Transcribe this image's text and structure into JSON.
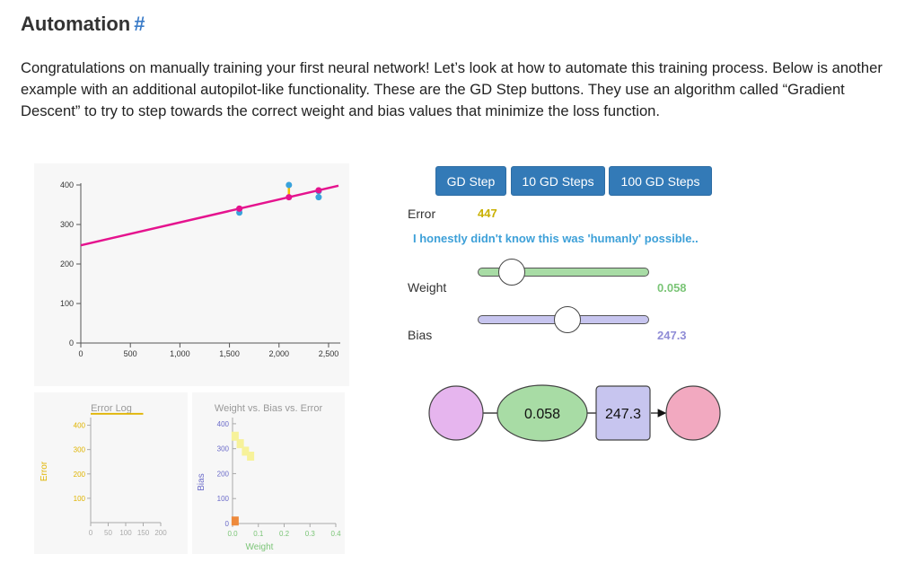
{
  "heading": {
    "title": "Automation",
    "anchor": "#"
  },
  "intro": "Congratulations on manually training your first neural network! Let’s look at how to automate this training process. Below is another example with an additional autopilot-like functionality. These are the GD Step buttons. They use an algorithm called “Gradient Descent” to try to step towards the correct weight and bias values that minimize the loss function.",
  "controls": {
    "buttons": [
      "GD Step",
      "10 GD Steps",
      "100 GD Steps"
    ],
    "error_label": "Error",
    "error_value": "447",
    "message": "I honestly didn't know this was 'humanly' possible..",
    "weight_label": "Weight",
    "weight_value": "0.058",
    "weight_slider_fraction": 0.2,
    "bias_label": "Bias",
    "bias_value": "247.3",
    "bias_slider_fraction": 0.53
  },
  "network": {
    "weight": "0.058",
    "bias": "247.3"
  },
  "colors": {
    "weight": "#a8dca5",
    "bias": "#c7c5ef",
    "input": "#e6b5ee",
    "output": "#f2a9c0",
    "error": "#c9b000",
    "line": "#e5138e",
    "points": "#3aa3dc",
    "button": "#337ab7",
    "message": "#3da0d8"
  },
  "chart_data": [
    {
      "type": "scatter",
      "x_ticks": [
        "0",
        "500",
        "1,000",
        "1,500",
        "2,000",
        "2,500"
      ],
      "y_ticks": [
        "0",
        "100",
        "200",
        "300",
        "400"
      ],
      "xlim": [
        0,
        2600
      ],
      "ylim": [
        0,
        400
      ],
      "points": [
        {
          "x": 1600,
          "y": 339
        },
        {
          "x": 1600,
          "y": 330
        },
        {
          "x": 2100,
          "y": 400
        },
        {
          "x": 2400,
          "y": 369
        },
        {
          "x": 2400,
          "y": 384
        }
      ],
      "fit_line": {
        "slope": 0.058,
        "intercept": 247.3
      }
    },
    {
      "type": "line",
      "title": "Error Log",
      "ylabel": "Error",
      "x_ticks": [
        "0",
        "50",
        "100",
        "150",
        "200"
      ],
      "y_ticks": [
        "100",
        "200",
        "300",
        "400"
      ],
      "xlim": [
        0,
        200
      ],
      "ylim": [
        0,
        450
      ],
      "x": [
        0,
        150
      ],
      "y": [
        447,
        447
      ]
    },
    {
      "type": "heatmap",
      "title": "Weight vs. Bias vs. Error",
      "xlabel": "Weight",
      "ylabel": "Bias",
      "x_ticks": [
        "0.0",
        "0.1",
        "0.2",
        "0.3",
        "0.4"
      ],
      "y_ticks": [
        "0",
        "100",
        "200",
        "300",
        "400"
      ],
      "xlim": [
        0,
        0.4
      ],
      "ylim": [
        0,
        450
      ],
      "cells": [
        {
          "weight": 0.01,
          "bias": 350
        },
        {
          "weight": 0.03,
          "bias": 320
        },
        {
          "weight": 0.05,
          "bias": 290
        },
        {
          "weight": 0.07,
          "bias": 270
        },
        {
          "weight": 0.01,
          "bias": 10
        }
      ]
    }
  ]
}
